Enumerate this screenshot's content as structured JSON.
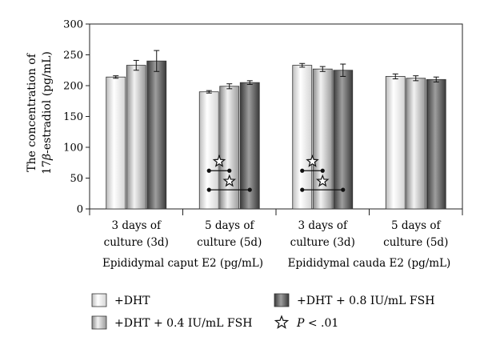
{
  "chart_data": {
    "type": "bar",
    "ylabel_line1": "The concentration of",
    "ylabel_line2_a": "17",
    "ylabel_line2_beta": "β",
    "ylabel_line2_b": "-estradiol (pg/mL)",
    "ylim": [
      0,
      300
    ],
    "yticks": [
      0,
      50,
      100,
      150,
      200,
      250,
      300
    ],
    "grid": false,
    "groups": [
      {
        "label": "Epididymal caput E2 (pg/mL)",
        "categories": [
          {
            "line1": "3 days of",
            "line2": "culture (3d)"
          },
          {
            "line1": "5 days of",
            "line2": "culture (5d)"
          }
        ]
      },
      {
        "label": "Epididymal cauda E2 (pg/mL)",
        "categories": [
          {
            "line1": "3 days of",
            "line2": "culture (3d)"
          },
          {
            "line1": "5 days of",
            "line2": "culture (5d)"
          }
        ]
      }
    ],
    "series": [
      {
        "name": "+DHT",
        "values": [
          214,
          190,
          233,
          215
        ],
        "errors": [
          2,
          2,
          3,
          4
        ],
        "fill": "light"
      },
      {
        "name": "+DHT + 0.4 IU/mL FSH",
        "values": [
          233,
          199,
          227,
          212
        ],
        "errors": [
          8,
          4,
          4,
          4
        ],
        "fill": "medium"
      },
      {
        "name": "+DHT + 0.8 IU/mL FSH",
        "values": [
          240,
          205,
          225,
          210
        ],
        "errors": [
          17,
          3,
          10,
          4
        ],
        "fill": "dark"
      }
    ],
    "significance": {
      "legend_label_italic": "P",
      "legend_label_rest": " < .01",
      "marks": [
        {
          "category_index": 1,
          "levels": [
            {
              "y": 62,
              "from_series": 0,
              "to_series": 1,
              "star_y": 77
            },
            {
              "y": 31,
              "from_series": 0,
              "to_series": 2,
              "star_y": 45
            }
          ]
        },
        {
          "category_index": 2,
          "levels": [
            {
              "y": 62,
              "from_series": 0,
              "to_series": 1,
              "star_y": 77
            },
            {
              "y": 31,
              "from_series": 0,
              "to_series": 2,
              "star_y": 45
            }
          ]
        }
      ]
    },
    "legend_order": [
      0,
      2,
      1,
      "significance"
    ]
  }
}
